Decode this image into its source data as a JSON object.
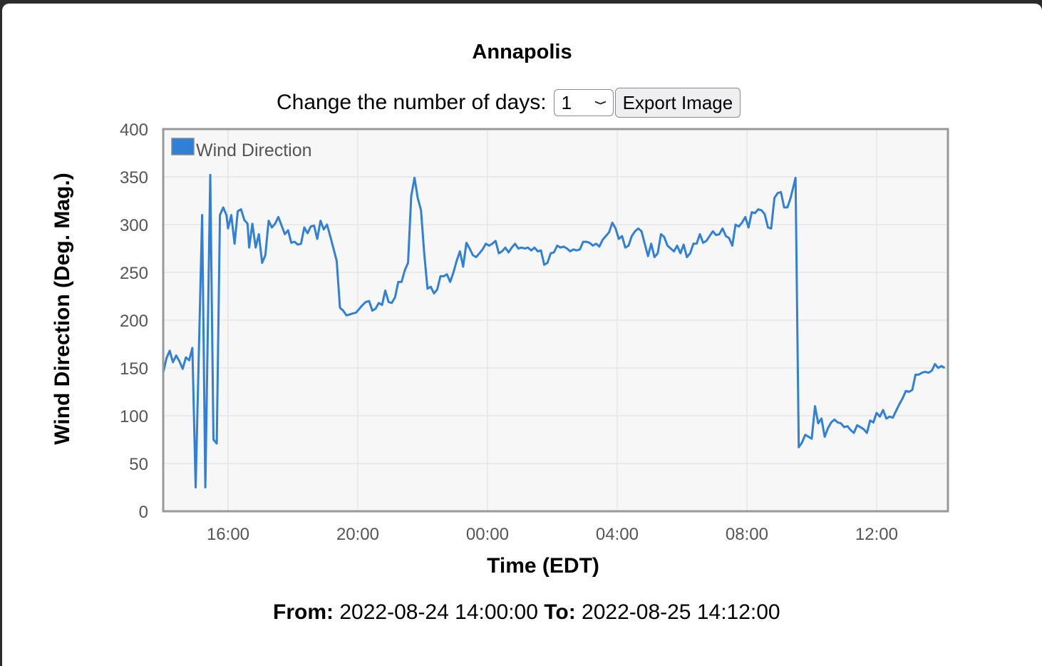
{
  "title": "Annapolis",
  "controls": {
    "days_label": "Change the number of days:",
    "days_selected": "1",
    "export_label": "Export Image"
  },
  "footer": {
    "from_label": "From:",
    "from_value": "2022-08-24 14:00:00",
    "to_label": "To:",
    "to_value": "2022-08-25 14:12:00"
  },
  "colors": {
    "series": "#2f80d6",
    "plot_bg": "#f7f7f7",
    "frame": "#999999"
  },
  "chart_data": {
    "type": "line",
    "xlabel": "Time (EDT)",
    "ylabel": "Wind Direction (Deg. Mag.)",
    "ylim": [
      0,
      400
    ],
    "yticks": [
      0,
      50,
      100,
      150,
      200,
      250,
      300,
      350,
      400
    ],
    "xlim_hours": [
      14,
      38.2
    ],
    "xticks": [
      {
        "hour": 16,
        "label": "16:00"
      },
      {
        "hour": 20,
        "label": "20:00"
      },
      {
        "hour": 24,
        "label": "00:00"
      },
      {
        "hour": 28,
        "label": "04:00"
      },
      {
        "hour": 32,
        "label": "08:00"
      },
      {
        "hour": 36,
        "label": "12:00"
      }
    ],
    "grid": true,
    "legend_position": "top-left",
    "series": [
      {
        "name": "Wind Direction",
        "points": [
          [
            14.0,
            145
          ],
          [
            14.1,
            160
          ],
          [
            14.2,
            168
          ],
          [
            14.3,
            156
          ],
          [
            14.4,
            163
          ],
          [
            14.5,
            157
          ],
          [
            14.6,
            149
          ],
          [
            14.7,
            161
          ],
          [
            14.8,
            158
          ],
          [
            14.9,
            171
          ],
          [
            15.0,
            25
          ],
          [
            15.2,
            310
          ],
          [
            15.3,
            25
          ],
          [
            15.45,
            352
          ],
          [
            15.55,
            75
          ],
          [
            15.65,
            71
          ],
          [
            15.75,
            310
          ],
          [
            15.85,
            318
          ],
          [
            15.95,
            310
          ],
          [
            16.0,
            296
          ],
          [
            16.1,
            310
          ],
          [
            16.2,
            280
          ],
          [
            16.3,
            314
          ],
          [
            16.4,
            316
          ],
          [
            16.5,
            305
          ],
          [
            16.6,
            301
          ],
          [
            16.65,
            276
          ],
          [
            16.75,
            301
          ],
          [
            16.85,
            276
          ],
          [
            16.95,
            290
          ],
          [
            17.05,
            260
          ],
          [
            17.15,
            268
          ],
          [
            17.25,
            304
          ],
          [
            17.35,
            297
          ],
          [
            17.45,
            301
          ],
          [
            17.55,
            308
          ],
          [
            17.65,
            299
          ],
          [
            17.75,
            290
          ],
          [
            17.85,
            294
          ],
          [
            17.95,
            281
          ],
          [
            18.05,
            282
          ],
          [
            18.15,
            279
          ],
          [
            18.25,
            280
          ],
          [
            18.35,
            297
          ],
          [
            18.45,
            291
          ],
          [
            18.55,
            298
          ],
          [
            18.65,
            299
          ],
          [
            18.75,
            285
          ],
          [
            18.85,
            304
          ],
          [
            18.95,
            295
          ],
          [
            19.05,
            300
          ],
          [
            19.15,
            288
          ],
          [
            19.25,
            275
          ],
          [
            19.35,
            262
          ],
          [
            19.45,
            213
          ],
          [
            19.55,
            210
          ],
          [
            19.65,
            205
          ],
          [
            19.75,
            206
          ],
          [
            19.85,
            207
          ],
          [
            19.95,
            208
          ],
          [
            20.05,
            212
          ],
          [
            20.15,
            216
          ],
          [
            20.25,
            219
          ],
          [
            20.35,
            220
          ],
          [
            20.45,
            210
          ],
          [
            20.55,
            212
          ],
          [
            20.65,
            218
          ],
          [
            20.75,
            216
          ],
          [
            20.85,
            231
          ],
          [
            20.95,
            219
          ],
          [
            21.05,
            218
          ],
          [
            21.15,
            224
          ],
          [
            21.25,
            240
          ],
          [
            21.35,
            240
          ],
          [
            21.45,
            252
          ],
          [
            21.55,
            260
          ],
          [
            21.65,
            330
          ],
          [
            21.75,
            349
          ],
          [
            21.85,
            328
          ],
          [
            21.95,
            315
          ],
          [
            22.05,
            270
          ],
          [
            22.15,
            233
          ],
          [
            22.25,
            235
          ],
          [
            22.35,
            228
          ],
          [
            22.45,
            232
          ],
          [
            22.55,
            246
          ],
          [
            22.65,
            246
          ],
          [
            22.75,
            248
          ],
          [
            22.85,
            240
          ],
          [
            22.95,
            250
          ],
          [
            23.05,
            262
          ],
          [
            23.15,
            272
          ],
          [
            23.25,
            256
          ],
          [
            23.35,
            281
          ],
          [
            23.45,
            275
          ],
          [
            23.55,
            268
          ],
          [
            23.65,
            266
          ],
          [
            23.75,
            270
          ],
          [
            23.85,
            274
          ],
          [
            23.95,
            280
          ],
          [
            24.05,
            278
          ],
          [
            24.15,
            280
          ],
          [
            24.25,
            283
          ],
          [
            24.35,
            270
          ],
          [
            24.45,
            272
          ],
          [
            24.55,
            276
          ],
          [
            24.65,
            271
          ],
          [
            24.75,
            276
          ],
          [
            24.85,
            280
          ],
          [
            24.95,
            275
          ],
          [
            25.05,
            276
          ],
          [
            25.15,
            275
          ],
          [
            25.25,
            276
          ],
          [
            25.35,
            273
          ],
          [
            25.45,
            276
          ],
          [
            25.55,
            272
          ],
          [
            25.65,
            273
          ],
          [
            25.75,
            258
          ],
          [
            25.85,
            260
          ],
          [
            25.95,
            270
          ],
          [
            26.05,
            271
          ],
          [
            26.15,
            278
          ],
          [
            26.25,
            276
          ],
          [
            26.35,
            277
          ],
          [
            26.45,
            275
          ],
          [
            26.55,
            272
          ],
          [
            26.65,
            274
          ],
          [
            26.75,
            273
          ],
          [
            26.85,
            274
          ],
          [
            26.95,
            282
          ],
          [
            27.05,
            282
          ],
          [
            27.15,
            281
          ],
          [
            27.25,
            278
          ],
          [
            27.35,
            280
          ],
          [
            27.45,
            277
          ],
          [
            27.55,
            284
          ],
          [
            27.65,
            288
          ],
          [
            27.75,
            292
          ],
          [
            27.85,
            302
          ],
          [
            27.95,
            296
          ],
          [
            28.05,
            285
          ],
          [
            28.15,
            288
          ],
          [
            28.25,
            276
          ],
          [
            28.35,
            278
          ],
          [
            28.45,
            288
          ],
          [
            28.55,
            293
          ],
          [
            28.65,
            296
          ],
          [
            28.75,
            293
          ],
          [
            28.85,
            280
          ],
          [
            28.95,
            267
          ],
          [
            29.05,
            280
          ],
          [
            29.15,
            266
          ],
          [
            29.25,
            270
          ],
          [
            29.35,
            290
          ],
          [
            29.45,
            287
          ],
          [
            29.55,
            278
          ],
          [
            29.65,
            275
          ],
          [
            29.75,
            272
          ],
          [
            29.85,
            278
          ],
          [
            29.95,
            270
          ],
          [
            30.05,
            279
          ],
          [
            30.15,
            266
          ],
          [
            30.25,
            270
          ],
          [
            30.35,
            280
          ],
          [
            30.45,
            280
          ],
          [
            30.55,
            290
          ],
          [
            30.65,
            281
          ],
          [
            30.75,
            283
          ],
          [
            30.85,
            288
          ],
          [
            30.95,
            293
          ],
          [
            31.05,
            289
          ],
          [
            31.15,
            290
          ],
          [
            31.25,
            296
          ],
          [
            31.35,
            288
          ],
          [
            31.45,
            286
          ],
          [
            31.55,
            278
          ],
          [
            31.65,
            300
          ],
          [
            31.75,
            298
          ],
          [
            31.85,
            302
          ],
          [
            31.95,
            308
          ],
          [
            32.05,
            297
          ],
          [
            32.15,
            313
          ],
          [
            32.25,
            312
          ],
          [
            32.35,
            316
          ],
          [
            32.45,
            315
          ],
          [
            32.55,
            311
          ],
          [
            32.65,
            297
          ],
          [
            32.75,
            296
          ],
          [
            32.85,
            328
          ],
          [
            32.95,
            333
          ],
          [
            33.05,
            334
          ],
          [
            33.15,
            318
          ],
          [
            33.25,
            318
          ],
          [
            33.35,
            328
          ],
          [
            33.5,
            349
          ],
          [
            33.6,
            67
          ],
          [
            33.7,
            72
          ],
          [
            33.8,
            80
          ],
          [
            33.9,
            78
          ],
          [
            34.0,
            76
          ],
          [
            34.1,
            110
          ],
          [
            34.2,
            92
          ],
          [
            34.3,
            97
          ],
          [
            34.4,
            78
          ],
          [
            34.5,
            87
          ],
          [
            34.6,
            93
          ],
          [
            34.7,
            96
          ],
          [
            34.8,
            93
          ],
          [
            34.9,
            92
          ],
          [
            35.0,
            88
          ],
          [
            35.1,
            89
          ],
          [
            35.2,
            85
          ],
          [
            35.3,
            82
          ],
          [
            35.4,
            90
          ],
          [
            35.5,
            88
          ],
          [
            35.6,
            86
          ],
          [
            35.7,
            82
          ],
          [
            35.8,
            95
          ],
          [
            35.9,
            93
          ],
          [
            36.0,
            103
          ],
          [
            36.1,
            99
          ],
          [
            36.2,
            106
          ],
          [
            36.3,
            97
          ],
          [
            36.4,
            99
          ],
          [
            36.5,
            98
          ],
          [
            36.6,
            105
          ],
          [
            36.7,
            112
          ],
          [
            36.8,
            118
          ],
          [
            36.9,
            126
          ],
          [
            37.0,
            125
          ],
          [
            37.1,
            127
          ],
          [
            37.2,
            143
          ],
          [
            37.3,
            143
          ],
          [
            37.4,
            145
          ],
          [
            37.5,
            146
          ],
          [
            37.6,
            145
          ],
          [
            37.7,
            147
          ],
          [
            37.8,
            154
          ],
          [
            37.9,
            150
          ],
          [
            38.0,
            152
          ],
          [
            38.1,
            150
          ]
        ]
      }
    ]
  }
}
